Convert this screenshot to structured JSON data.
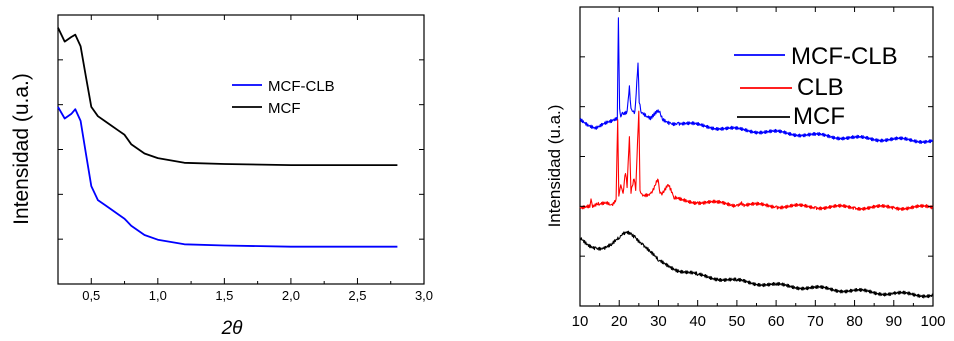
{
  "chart_data": [
    {
      "type": "line",
      "xlabel": "2θ",
      "ylabel": "Intensidad (u.a.)",
      "xlim": [
        0.25,
        3.0
      ],
      "ylim": [
        0,
        100
      ],
      "x_ticks": [
        0.5,
        1.0,
        1.5,
        2.0,
        2.5,
        3.0
      ],
      "x_tick_labels": [
        "0,5",
        "1,0",
        "1,5",
        "2,0",
        "2,5",
        "3,0"
      ],
      "y_tick_labels_shown": false,
      "grid": false,
      "legend_position": "upper-right",
      "series": [
        {
          "name": "MCF-CLB",
          "color": "#0000ff",
          "x": [
            0.25,
            0.3,
            0.35,
            0.38,
            0.42,
            0.46,
            0.5,
            0.55,
            0.6,
            0.65,
            0.7,
            0.75,
            0.8,
            0.9,
            1.0,
            1.2,
            1.5,
            2.0,
            2.5,
            2.8
          ],
          "y": [
            64,
            59,
            61,
            63,
            58,
            44,
            30,
            24,
            22,
            20,
            18,
            16,
            13,
            9,
            7,
            5,
            4.5,
            4,
            4,
            4
          ]
        },
        {
          "name": "MCF",
          "color": "#000000",
          "x": [
            0.25,
            0.3,
            0.35,
            0.38,
            0.42,
            0.46,
            0.5,
            0.55,
            0.6,
            0.65,
            0.7,
            0.75,
            0.8,
            0.9,
            1.0,
            1.2,
            1.5,
            2.0,
            2.5,
            2.8
          ],
          "y": [
            98,
            92,
            94,
            95,
            90,
            77,
            64,
            60,
            58,
            56,
            54,
            52,
            48,
            44,
            42,
            40,
            39.5,
            39,
            39,
            39
          ]
        }
      ]
    },
    {
      "type": "line",
      "xlabel": "",
      "ylabel": "Intensidad (u.a.)",
      "xlim": [
        10,
        100
      ],
      "ylim": [
        0,
        100
      ],
      "x_ticks": [
        10,
        20,
        30,
        40,
        50,
        60,
        70,
        80,
        90,
        100
      ],
      "x_tick_labels": [
        "10",
        "20",
        "30",
        "40",
        "50",
        "60",
        "70",
        "80",
        "90",
        "100"
      ],
      "y_tick_labels_shown": false,
      "grid": false,
      "legend_position": "upper-right",
      "series": [
        {
          "name": "MCF-CLB",
          "color": "#0000ff",
          "x": [
            10,
            12,
            14,
            16,
            18,
            19.5,
            19.8,
            20.1,
            20.4,
            21,
            22,
            22.6,
            23,
            24,
            24.8,
            25.1,
            25.5,
            27,
            28,
            29.9,
            31,
            33,
            35,
            40,
            50,
            60,
            70,
            80,
            90,
            100
          ],
          "y": [
            63,
            61.5,
            60.5,
            61.5,
            62,
            63,
            99,
            67,
            64,
            65,
            66,
            75,
            67,
            66,
            83,
            69,
            66,
            64,
            63,
            66.5,
            63,
            62,
            62,
            61,
            59.5,
            58.5,
            57.5,
            56.5,
            56,
            55.5
          ]
        },
        {
          "name": "CLB",
          "color": "#ff0000",
          "x": [
            10,
            12.5,
            12.8,
            13.2,
            15,
            17,
            18,
            19.2,
            19.6,
            19.9,
            20.4,
            21,
            21.6,
            22,
            22.6,
            23,
            23.8,
            24.2,
            25,
            25.3,
            26,
            28,
            29.8,
            30.4,
            31.5,
            32.5,
            34,
            36,
            40,
            45,
            50,
            51.2,
            52,
            55,
            60,
            70,
            80,
            90,
            100
          ],
          "y": [
            32,
            32,
            35,
            32,
            33,
            34,
            33,
            35,
            63,
            36,
            40,
            37,
            44,
            39,
            57,
            37,
            42,
            38,
            66,
            38,
            36,
            37,
            42,
            37,
            38,
            40,
            35,
            34.5,
            34,
            33.5,
            33,
            34,
            33,
            32.8,
            32.5,
            32.2,
            32,
            32,
            32
          ]
        },
        {
          "name": "MCF",
          "color": "#000000",
          "x": [
            10,
            12,
            14,
            16,
            18,
            20,
            21,
            22,
            23,
            24,
            25,
            26,
            28,
            30,
            35,
            40,
            45,
            50,
            60,
            70,
            80,
            90,
            100
          ],
          "y": [
            21,
            19,
            18,
            17.5,
            18.5,
            21,
            22.5,
            23.5,
            23,
            22,
            20.5,
            19,
            16,
            13,
            10,
            8,
            7,
            6,
            4.5,
            3.5,
            2.5,
            1.5,
            1
          ]
        }
      ]
    }
  ]
}
